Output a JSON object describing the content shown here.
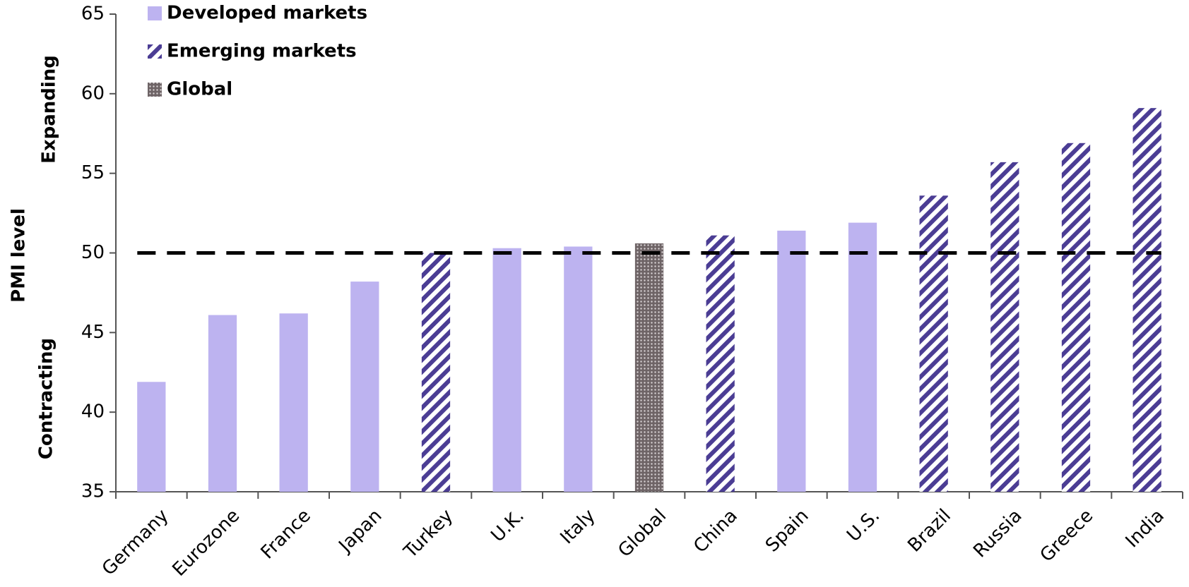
{
  "chart_data": {
    "type": "bar",
    "y_label": "PMI level",
    "annotations": [
      "Expanding",
      "Contracting"
    ],
    "categories": [
      "Germany",
      "Eurozone",
      "France",
      "Japan",
      "Turkey",
      "U.K.",
      "Italy",
      "Global",
      "China",
      "Spain",
      "U.S.",
      "Brazil",
      "Russia",
      "Greece",
      "India"
    ],
    "series": [
      {
        "name": "Developed markets",
        "color": "#bdb3f0",
        "pattern": "solid",
        "values": [
          41.9,
          46.1,
          46.2,
          48.2,
          null,
          50.3,
          50.4,
          null,
          null,
          51.4,
          51.9,
          null,
          null,
          null,
          null
        ]
      },
      {
        "name": "Emerging markets",
        "color": "#4b3d94",
        "pattern": "hatch",
        "values": [
          null,
          null,
          null,
          null,
          50.0,
          null,
          null,
          null,
          51.1,
          null,
          null,
          53.6,
          55.7,
          56.9,
          59.1
        ]
      },
      {
        "name": "Global",
        "color": "#6e6466",
        "pattern": "dots",
        "values": [
          null,
          null,
          null,
          null,
          null,
          null,
          null,
          50.6,
          null,
          null,
          null,
          null,
          null,
          null,
          null
        ]
      }
    ],
    "reference_line": 50,
    "ylim": [
      35,
      65
    ],
    "yticks": [
      35,
      40,
      45,
      50,
      55,
      60,
      65
    ],
    "legend": "top-left"
  }
}
